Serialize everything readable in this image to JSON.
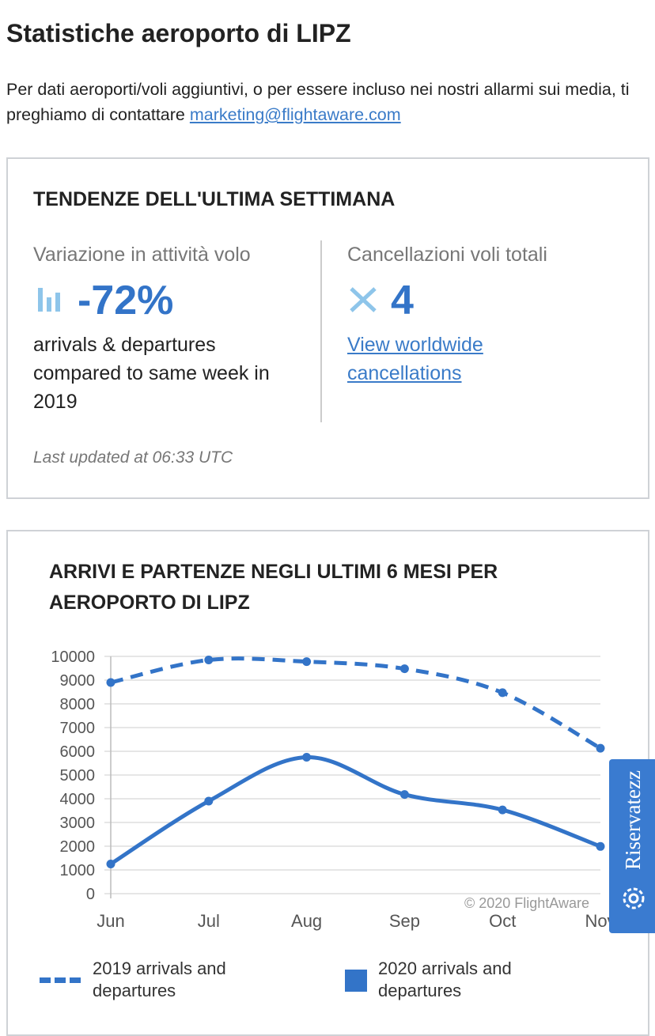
{
  "header": {
    "title": "Statistiche aeroporto di LIPZ",
    "intro": "Per dati aeroporti/voli aggiuntivi, o per essere incluso nei nostri allarmi sui media, ti preghiamo di contattare",
    "email": "marketing@flightaware.com"
  },
  "trends": {
    "title": "TENDENZE DELL'ULTIMA SETTIMANA",
    "activity": {
      "label": "Variazione in attività volo",
      "value": "-72%",
      "note": "arrivals & departures compared to same week in 2019"
    },
    "cancellations": {
      "label": "Cancellazioni voli totali",
      "value": "4",
      "link": "View worldwide cancellations"
    },
    "updated": "Last updated at 06:33 UTC"
  },
  "chart_data": {
    "type": "line",
    "title": "ARRIVI E PARTENZE NEGLI ULTIMI 6 MESI PER AEROPORTO DI LIPZ",
    "categories": [
      "Jun",
      "Jul",
      "Aug",
      "Sep",
      "Oct",
      "Nov"
    ],
    "series": [
      {
        "name": "2019 arrivals and departures",
        "color": "#3374c8",
        "dashed": true,
        "values": [
          8900,
          9850,
          9780,
          9480,
          8470,
          6130
        ]
      },
      {
        "name": "2020 arrivals and departures",
        "color": "#3374c8",
        "dashed": false,
        "values": [
          1250,
          3900,
          5750,
          4180,
          3530,
          1990
        ]
      }
    ],
    "ylim": [
      0,
      10000
    ],
    "yticks": [
      0,
      1000,
      2000,
      3000,
      4000,
      5000,
      6000,
      7000,
      8000,
      9000,
      10000
    ],
    "grid": true,
    "credit": "© 2020 FlightAware"
  },
  "privacy": "Riservatezz"
}
